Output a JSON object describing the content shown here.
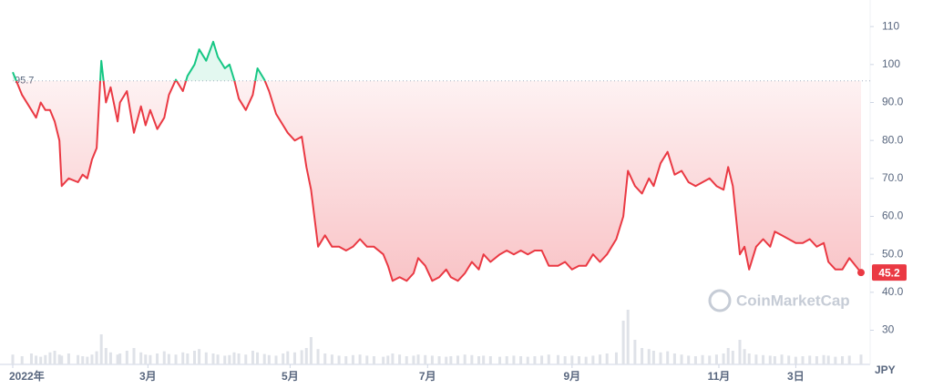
{
  "chart_data": {
    "type": "line",
    "unit": "JPY",
    "watermark": "CoinMarketCap",
    "baseline": 95.7,
    "x": [
      0,
      4,
      8,
      10,
      12,
      14,
      16,
      18,
      20,
      21,
      24,
      28,
      30,
      32,
      34,
      36,
      38,
      40,
      42,
      45,
      46,
      49,
      52,
      55,
      57,
      59,
      62,
      65,
      67,
      70,
      73,
      75,
      78,
      80,
      83,
      86,
      88,
      91,
      93,
      95,
      97,
      100,
      103,
      105,
      108,
      110,
      113,
      116,
      118,
      121,
      124,
      126,
      128,
      131,
      134,
      137,
      140,
      143,
      146,
      149,
      152,
      155,
      159,
      161,
      163,
      166,
      169,
      172,
      174,
      177,
      180,
      183,
      186,
      188,
      191,
      194,
      197,
      200,
      202,
      205,
      209,
      212,
      215,
      218,
      221,
      224,
      227,
      230,
      234,
      237,
      240,
      243,
      246,
      249,
      252,
      255,
      259,
      262,
      264,
      267,
      270,
      273,
      275,
      278,
      281,
      284,
      287,
      290,
      293,
      296,
      299,
      302,
      305,
      307,
      309,
      312,
      314,
      316,
      319,
      322,
      325,
      327,
      330,
      333,
      336,
      339,
      342,
      345,
      348,
      350,
      353,
      356,
      359,
      364
    ],
    "xlim": [
      0,
      364
    ],
    "xticks": [
      {
        "value": 0,
        "label": "2022年"
      },
      {
        "value": 58,
        "label": "3月"
      },
      {
        "value": 119,
        "label": "5月"
      },
      {
        "value": 178,
        "label": "7月"
      },
      {
        "value": 240,
        "label": "9月"
      },
      {
        "value": 303,
        "label": "11月"
      },
      {
        "value": 336,
        "label": "3日"
      }
    ],
    "series": [
      {
        "color": "#ea3943",
        "up_color": "#16c784",
        "values": [
          98,
          92,
          88,
          86,
          90,
          88,
          88,
          85,
          80,
          68,
          70,
          69,
          71,
          70,
          75,
          78,
          101,
          90,
          94,
          85,
          90,
          93,
          82,
          89,
          84,
          88,
          83,
          86,
          92,
          96,
          93,
          97,
          100,
          104,
          101,
          106,
          102,
          99,
          100,
          96,
          91,
          88,
          92,
          99,
          96,
          93,
          87,
          84,
          82,
          80,
          81,
          73,
          67,
          52,
          55,
          52,
          52,
          51,
          52,
          54,
          52,
          52,
          50,
          47,
          43,
          44,
          43,
          45,
          49,
          47,
          43,
          44,
          46,
          44,
          43,
          45,
          48,
          46,
          50,
          48,
          50,
          51,
          50,
          51,
          50,
          51,
          51,
          47,
          47,
          48,
          46,
          47,
          47,
          50,
          48,
          50,
          54,
          60,
          72,
          68,
          66,
          70,
          68,
          74,
          77,
          71,
          72,
          69,
          68,
          69,
          70,
          68,
          67,
          73,
          68,
          50,
          52,
          46,
          52,
          54,
          52,
          56,
          55,
          54,
          53,
          53,
          54,
          52,
          53,
          48,
          46,
          46,
          49,
          45.2
        ]
      }
    ],
    "volume": {
      "color": "#dfe2e8",
      "values": [
        18,
        15,
        20,
        16,
        14,
        17,
        22,
        25,
        18,
        16,
        20,
        17,
        15,
        14,
        18,
        24,
        55,
        30,
        22,
        18,
        20,
        25,
        30,
        22,
        18,
        17,
        20,
        24,
        19,
        18,
        22,
        20,
        25,
        28,
        22,
        20,
        18,
        16,
        17,
        22,
        20,
        18,
        25,
        22,
        19,
        17,
        16,
        20,
        24,
        22,
        26,
        30,
        50,
        28,
        20,
        18,
        16,
        15,
        17,
        18,
        16,
        15,
        14,
        16,
        20,
        18,
        15,
        16,
        18,
        17,
        16,
        15,
        14,
        15,
        16,
        18,
        17,
        15,
        16,
        15,
        14,
        15,
        16,
        15,
        14,
        15,
        16,
        18,
        17,
        15,
        16,
        15,
        14,
        16,
        18,
        20,
        22,
        80,
        100,
        45,
        30,
        28,
        25,
        22,
        24,
        20,
        18,
        16,
        15,
        17,
        16,
        18,
        20,
        30,
        25,
        45,
        28,
        20,
        18,
        17,
        16,
        15,
        18,
        16,
        14,
        15,
        16,
        15,
        17,
        16,
        14,
        15,
        16,
        18
      ]
    },
    "ylim": [
      21,
      117
    ],
    "y2lim": [
      0,
      100
    ],
    "yticks": [
      30,
      {
        "value": 40,
        "label": "40.0"
      },
      {
        "value": 50,
        "label": "50.0"
      },
      {
        "value": 60,
        "label": "60.0"
      },
      {
        "value": 70,
        "label": "70.0"
      },
      {
        "value": 80,
        "label": "80.0"
      },
      {
        "value": 90,
        "label": "90.0"
      },
      100,
      110
    ]
  }
}
